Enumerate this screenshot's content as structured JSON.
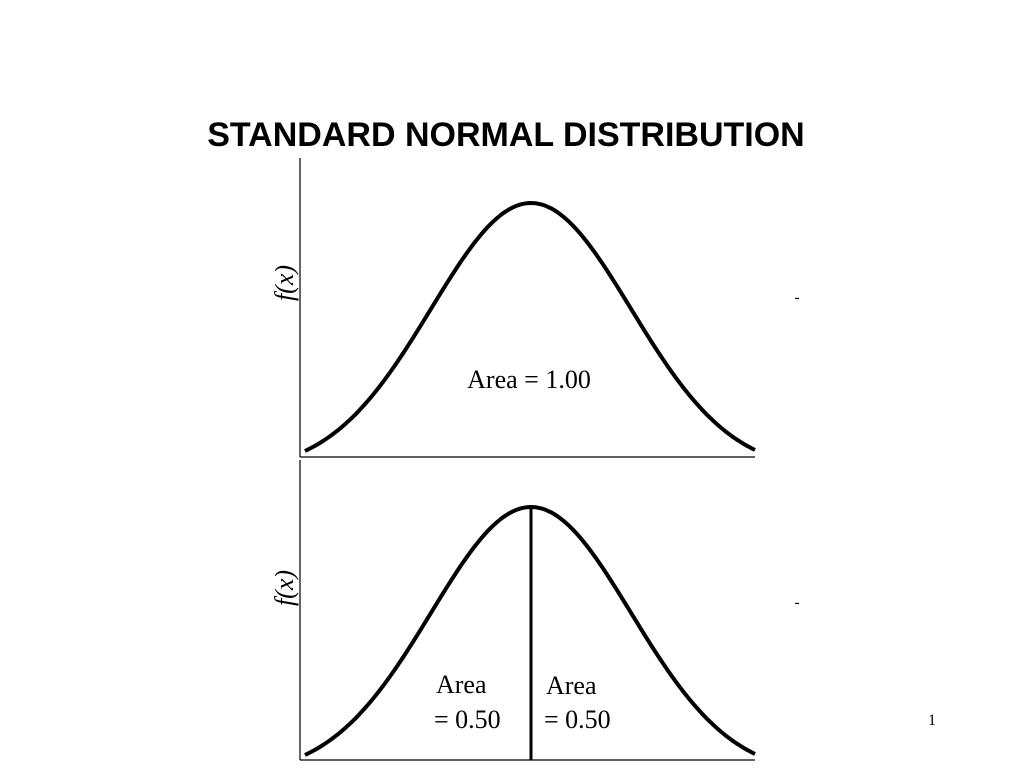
{
  "title": "STANDARD NORMAL DISTRIBUTION",
  "panels": [
    {
      "y_label": "f(x)",
      "areas": [
        [
          "Area = 1.00"
        ]
      ],
      "marker": "-"
    },
    {
      "y_label": "f(x)",
      "areas": [
        [
          "Area",
          "= 0.50"
        ],
        [
          "Area",
          "= 0.50"
        ]
      ],
      "marker": "-"
    }
  ],
  "page_number": "1"
}
